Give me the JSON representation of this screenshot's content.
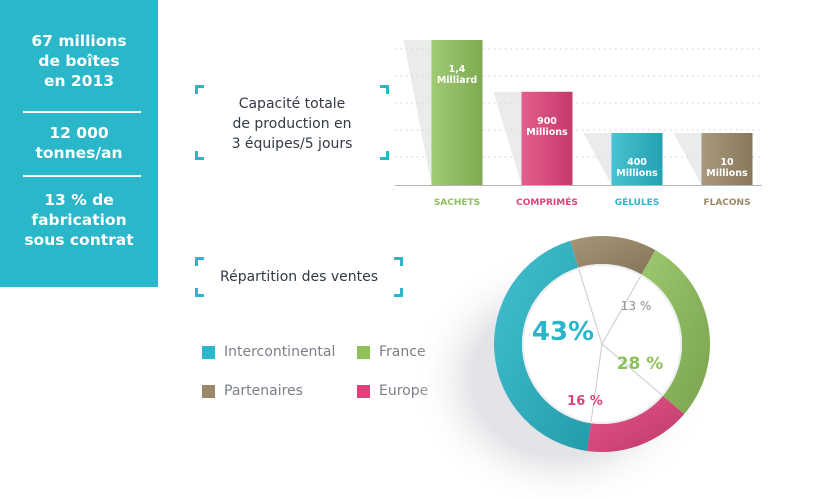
{
  "stats": [
    {
      "text": "67 millions\nde boîtes\nen 2013"
    },
    {
      "text": "12 000\ntonnes/an"
    },
    {
      "text": "13 % de\nfabrication\nsous contrat"
    }
  ],
  "production_heading": "Capacité totale\nde production en\n3 équipes/5 jours",
  "sales_heading": "Répartition des ventes",
  "colors": {
    "teal": "#29b7c9",
    "green": "#8fc15b",
    "pink": "#e0417a",
    "brown": "#9b8866"
  },
  "chart_data": [
    {
      "type": "bar",
      "categories": [
        "SACHETS",
        "COMPRIMÉS",
        "GÉLULES",
        "FLACONS"
      ],
      "values": [
        1400,
        900,
        400,
        10
      ],
      "value_labels": [
        [
          "1,4",
          "Milliard"
        ],
        [
          "900",
          "Millions"
        ],
        [
          "400",
          "Millions"
        ],
        [
          "10",
          "Millions"
        ]
      ],
      "colors": [
        "#8fc15b",
        "#e0417a",
        "#29b7c9",
        "#9b8866"
      ],
      "title": "Capacité totale de production en 3 équipes/5 jours",
      "grid": true
    },
    {
      "type": "pie",
      "title": "Répartition des ventes",
      "labels": [
        "Intercontinental",
        "France",
        "Partenaires",
        "Europe"
      ],
      "values": [
        43,
        28,
        13,
        16
      ],
      "value_labels": [
        "43%",
        "28 %",
        "13 %",
        "16 %"
      ],
      "colors": [
        "#29b7c9",
        "#8fc15b",
        "#9b8866",
        "#e0417a"
      ],
      "legend": [
        {
          "label": "Intercontinental",
          "color": "#29b7c9"
        },
        {
          "label": "France",
          "color": "#8fc15b"
        },
        {
          "label": "Partenaires",
          "color": "#9b8866"
        },
        {
          "label": "Europe",
          "color": "#e0417a"
        }
      ]
    }
  ]
}
